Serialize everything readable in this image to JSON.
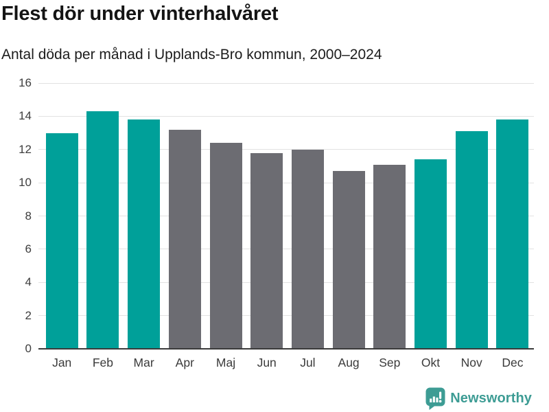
{
  "header": {
    "title": "Flest dör under vinterhalvåret",
    "subtitle": "Antal döda per månad i Upplands-Bro kommun, 2000–2024"
  },
  "chart_data": {
    "type": "bar",
    "title": "Flest dör under vinterhalvåret",
    "subtitle": "Antal döda per månad i Upplands-Bro kommun, 2000–2024",
    "categories": [
      "Jan",
      "Feb",
      "Mar",
      "Apr",
      "Maj",
      "Jun",
      "Jul",
      "Aug",
      "Sep",
      "Okt",
      "Nov",
      "Dec"
    ],
    "values": [
      13.0,
      14.3,
      13.8,
      13.2,
      12.4,
      11.8,
      12.0,
      10.7,
      11.1,
      11.4,
      13.1,
      13.8
    ],
    "bar_colors": [
      "#00a099",
      "#00a099",
      "#00a099",
      "#6c6c72",
      "#6c6c72",
      "#6c6c72",
      "#6c6c72",
      "#6c6c72",
      "#6c6c72",
      "#00a099",
      "#00a099",
      "#00a099"
    ],
    "xlabel": "",
    "ylabel": "",
    "ylim": [
      0,
      16
    ],
    "yticks": [
      0,
      2,
      4,
      6,
      8,
      10,
      12,
      14,
      16
    ],
    "grid": "horizontal",
    "legend": "none"
  },
  "colors": {
    "winter_teal": "#00a099",
    "summer_gray": "#6c6c72",
    "gridline": "#e2e2e2",
    "axis_line": "#3a3a3a",
    "tick_text": "#3d3d3d"
  },
  "footer": {
    "brand": "Newsworthy",
    "brand_color": "#3d9c94"
  }
}
